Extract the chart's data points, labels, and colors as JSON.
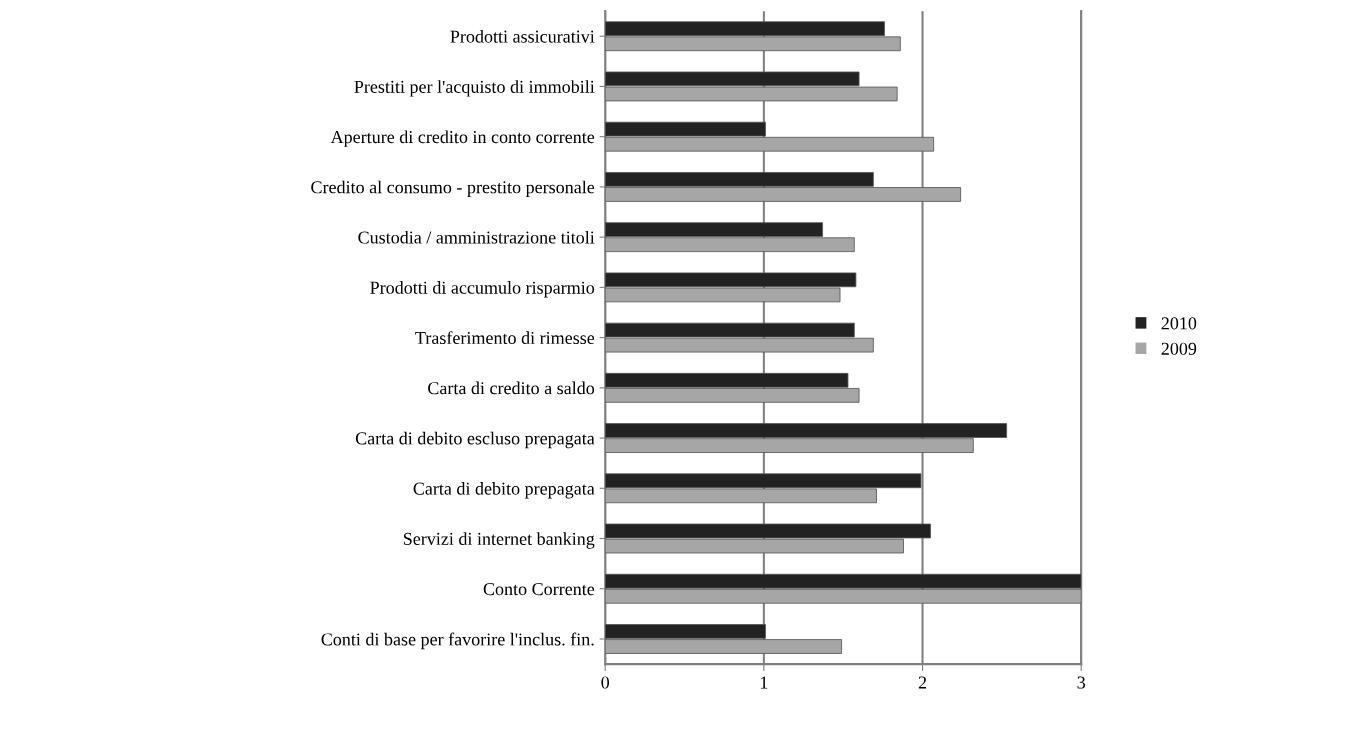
{
  "chart_data": {
    "type": "bar",
    "orientation": "horizontal",
    "categories": [
      "Prodotti assicurativi",
      "Prestiti per l'acquisto di immobili",
      "Aperture di credito in conto corrente",
      "Credito al consumo - prestito personale",
      "Custodia / amministrazione titoli",
      "Prodotti di accumulo risparmio",
      "Trasferimento di rimesse",
      "Carta di credito a saldo",
      "Carta di debito escluso prepagata",
      "Carta di debito prepagata",
      "Servizi di internet banking",
      "Conto Corrente",
      "Conti di base per favorire l'inclus. fin."
    ],
    "series": [
      {
        "name": "2010",
        "color": "#222222",
        "values": [
          1.76,
          1.6,
          1.01,
          1.69,
          1.37,
          1.58,
          1.57,
          1.53,
          2.53,
          1.99,
          2.05,
          3.0,
          1.01
        ]
      },
      {
        "name": "2009",
        "color": "#a6a6a6",
        "values": [
          1.86,
          1.84,
          2.07,
          2.24,
          1.57,
          1.48,
          1.69,
          1.6,
          2.32,
          1.71,
          1.88,
          3.0,
          1.49
        ]
      }
    ],
    "xlim": [
      0,
      3
    ],
    "xticks": [
      0,
      1,
      2,
      3
    ],
    "grid": "x",
    "legend": "right"
  }
}
